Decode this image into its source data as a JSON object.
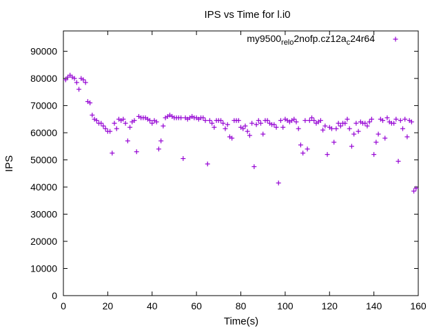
{
  "chart_data": {
    "type": "scatter",
    "title": "IPS vs Time for l.i0",
    "xlabel": "Time(s)",
    "ylabel": "IPS",
    "xlim": [
      0,
      160
    ],
    "ylim": [
      0,
      97500
    ],
    "xticks": [
      0,
      20,
      40,
      60,
      80,
      100,
      120,
      140,
      160
    ],
    "yticks": [
      0,
      10000,
      20000,
      30000,
      40000,
      50000,
      60000,
      70000,
      80000,
      90000
    ],
    "legend_position": "top-right",
    "marker": "+",
    "series": [
      {
        "name": "my9500_rel_o2nofp.cz12a_c24r64",
        "legend_parts": {
          "main": "my9500",
          "sub1": "rel",
          "sub2": "o",
          "mid": "2nofp.cz12a",
          "sub3": "c",
          "tail": "24r64"
        },
        "color": "#9400d3",
        "points": [
          [
            1,
            79500
          ],
          [
            2,
            80500
          ],
          [
            3,
            81200
          ],
          [
            4,
            80500
          ],
          [
            5,
            80000
          ],
          [
            6,
            78500
          ],
          [
            7,
            76000
          ],
          [
            8,
            80000
          ],
          [
            9,
            79500
          ],
          [
            10,
            78500
          ],
          [
            11,
            71500
          ],
          [
            12,
            71000
          ],
          [
            13,
            66500
          ],
          [
            14,
            65000
          ],
          [
            15,
            64500
          ],
          [
            16,
            63500
          ],
          [
            17,
            63500
          ],
          [
            18,
            62500
          ],
          [
            19,
            61500
          ],
          [
            20,
            60500
          ],
          [
            21,
            60500
          ],
          [
            22,
            52500
          ],
          [
            23,
            63500
          ],
          [
            24,
            61500
          ],
          [
            25,
            65000
          ],
          [
            26,
            64500
          ],
          [
            27,
            65000
          ],
          [
            28,
            63500
          ],
          [
            29,
            57000
          ],
          [
            30,
            62000
          ],
          [
            31,
            64000
          ],
          [
            32,
            64500
          ],
          [
            33,
            53000
          ],
          [
            34,
            66000
          ],
          [
            35,
            65500
          ],
          [
            36,
            65500
          ],
          [
            37,
            65500
          ],
          [
            38,
            65000
          ],
          [
            39,
            64500
          ],
          [
            40,
            63500
          ],
          [
            41,
            64500
          ],
          [
            42,
            64000
          ],
          [
            43,
            54000
          ],
          [
            44,
            57000
          ],
          [
            45,
            62500
          ],
          [
            46,
            65500
          ],
          [
            47,
            66000
          ],
          [
            48,
            66500
          ],
          [
            49,
            66000
          ],
          [
            50,
            65500
          ],
          [
            51,
            65500
          ],
          [
            52,
            65500
          ],
          [
            53,
            65500
          ],
          [
            54,
            50500
          ],
          [
            55,
            65500
          ],
          [
            56,
            65000
          ],
          [
            57,
            65500
          ],
          [
            58,
            66000
          ],
          [
            59,
            65500
          ],
          [
            60,
            65500
          ],
          [
            61,
            65000
          ],
          [
            62,
            65500
          ],
          [
            63,
            65500
          ],
          [
            64,
            64500
          ],
          [
            65,
            48500
          ],
          [
            66,
            64500
          ],
          [
            67,
            63500
          ],
          [
            68,
            62000
          ],
          [
            69,
            64500
          ],
          [
            70,
            64500
          ],
          [
            71,
            64500
          ],
          [
            72,
            63500
          ],
          [
            73,
            61500
          ],
          [
            74,
            63000
          ],
          [
            75,
            58500
          ],
          [
            76,
            58000
          ],
          [
            77,
            64500
          ],
          [
            78,
            64500
          ],
          [
            79,
            64500
          ],
          [
            80,
            62000
          ],
          [
            81,
            61500
          ],
          [
            82,
            62500
          ],
          [
            83,
            60500
          ],
          [
            84,
            59000
          ],
          [
            85,
            63500
          ],
          [
            86,
            47500
          ],
          [
            87,
            63000
          ],
          [
            88,
            64500
          ],
          [
            89,
            63500
          ],
          [
            90,
            59500
          ],
          [
            91,
            64500
          ],
          [
            92,
            64500
          ],
          [
            93,
            63500
          ],
          [
            94,
            63000
          ],
          [
            95,
            63000
          ],
          [
            96,
            62000
          ],
          [
            97,
            41500
          ],
          [
            98,
            64500
          ],
          [
            99,
            62000
          ],
          [
            100,
            65000
          ],
          [
            101,
            64500
          ],
          [
            102,
            64000
          ],
          [
            103,
            64500
          ],
          [
            104,
            65000
          ],
          [
            105,
            64000
          ],
          [
            106,
            61500
          ],
          [
            107,
            55500
          ],
          [
            108,
            52500
          ],
          [
            109,
            64500
          ],
          [
            110,
            54000
          ],
          [
            111,
            64500
          ],
          [
            112,
            65500
          ],
          [
            113,
            64500
          ],
          [
            114,
            63500
          ],
          [
            115,
            64000
          ],
          [
            116,
            64500
          ],
          [
            117,
            61000
          ],
          [
            118,
            62500
          ],
          [
            119,
            52000
          ],
          [
            120,
            62000
          ],
          [
            121,
            61500
          ],
          [
            122,
            56500
          ],
          [
            123,
            61500
          ],
          [
            124,
            63500
          ],
          [
            125,
            62500
          ],
          [
            126,
            63500
          ],
          [
            127,
            63500
          ],
          [
            128,
            65000
          ],
          [
            129,
            61500
          ],
          [
            130,
            55000
          ],
          [
            131,
            59500
          ],
          [
            132,
            63500
          ],
          [
            133,
            60500
          ],
          [
            134,
            64000
          ],
          [
            135,
            63500
          ],
          [
            136,
            63500
          ],
          [
            137,
            62500
          ],
          [
            138,
            64000
          ],
          [
            139,
            65000
          ],
          [
            140,
            52000
          ],
          [
            141,
            56500
          ],
          [
            142,
            59500
          ],
          [
            143,
            65000
          ],
          [
            144,
            64500
          ],
          [
            145,
            58000
          ],
          [
            146,
            65500
          ],
          [
            147,
            64000
          ],
          [
            148,
            63500
          ],
          [
            149,
            63500
          ],
          [
            150,
            65000
          ],
          [
            151,
            49500
          ],
          [
            152,
            64500
          ],
          [
            153,
            61500
          ],
          [
            154,
            65000
          ],
          [
            155,
            58500
          ],
          [
            156,
            64500
          ],
          [
            157,
            64000
          ],
          [
            158,
            38500
          ],
          [
            159,
            39500
          ]
        ]
      }
    ]
  }
}
